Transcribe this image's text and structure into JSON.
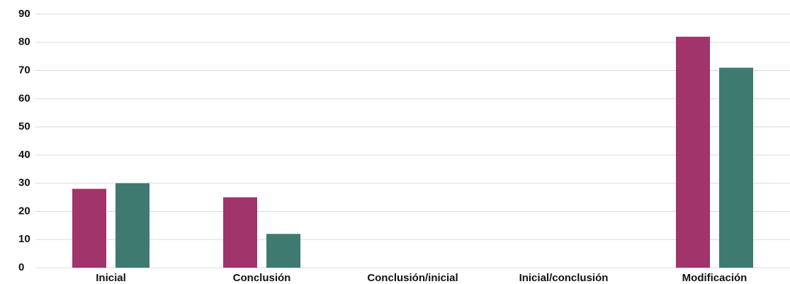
{
  "chart_data": {
    "type": "bar",
    "categories": [
      "Inicial",
      "Conclusión",
      "Conclusión/inicial",
      "Inicial/conclusión",
      "Modificación"
    ],
    "series": [
      {
        "color": "#a0346b",
        "values": [
          28,
          25,
          0,
          0,
          82
        ]
      },
      {
        "color": "#3e7a70",
        "values": [
          30,
          12,
          0,
          0,
          71
        ]
      }
    ],
    "ylim": [
      0,
      90
    ],
    "yticks": [
      0,
      10,
      20,
      30,
      40,
      50,
      60,
      70,
      80,
      90
    ],
    "grid": true
  }
}
